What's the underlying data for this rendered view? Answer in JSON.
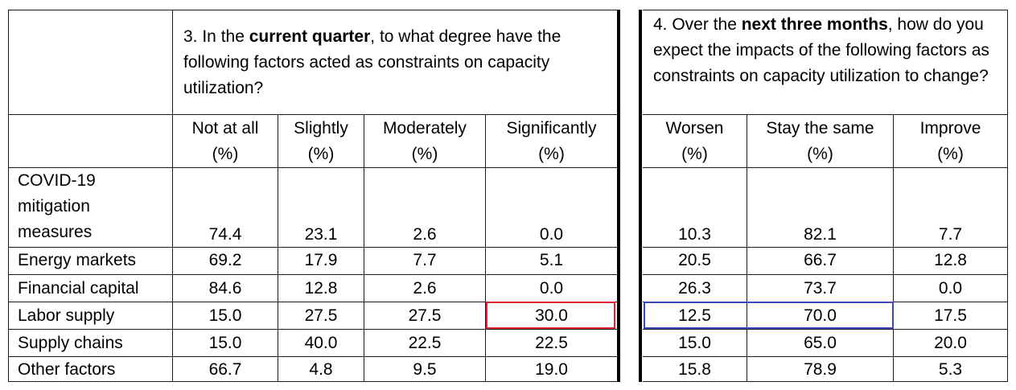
{
  "question3": {
    "pre": "3. In the ",
    "bold": "current quarter",
    "post": ", to what degree have the following factors acted as constraints on capacity utilization?"
  },
  "question4": {
    "pre": "4. Over the ",
    "bold": "next three months",
    "post": ", how do you expect the impacts of the following factors as constraints on capacity utilization to change?"
  },
  "columns": [
    {
      "label": "Not at all",
      "unit": "(%)"
    },
    {
      "label": "Slightly",
      "unit": "(%)"
    },
    {
      "label": "Moderately",
      "unit": "(%)"
    },
    {
      "label": "Significantly",
      "unit": "(%)"
    },
    {
      "label": "Worsen",
      "unit": "(%)"
    },
    {
      "label": "Stay the same",
      "unit": "(%)"
    },
    {
      "label": "Improve",
      "unit": "(%)"
    }
  ],
  "rows": [
    {
      "label_lines": [
        "COVID-19",
        "mitigation",
        "measures"
      ],
      "values": [
        "74.4",
        "23.1",
        "2.6",
        "0.0",
        "10.3",
        "82.1",
        "7.7"
      ]
    },
    {
      "label_lines": [
        "Energy markets"
      ],
      "values": [
        "69.2",
        "17.9",
        "7.7",
        "5.1",
        "20.5",
        "66.7",
        "12.8"
      ]
    },
    {
      "label_lines": [
        "Financial capital"
      ],
      "values": [
        "84.6",
        "12.8",
        "2.6",
        "0.0",
        "26.3",
        "73.7",
        "0.0"
      ]
    },
    {
      "label_lines": [
        "Labor supply"
      ],
      "values": [
        "15.0",
        "27.5",
        "27.5",
        "30.0",
        "12.5",
        "70.0",
        "17.5"
      ]
    },
    {
      "label_lines": [
        "Supply chains"
      ],
      "values": [
        "15.0",
        "40.0",
        "22.5",
        "22.5",
        "15.0",
        "65.0",
        "20.0"
      ]
    },
    {
      "label_lines": [
        "Other factors"
      ],
      "values": [
        "66.7",
        "4.8",
        "9.5",
        "19.0",
        "15.8",
        "78.9",
        "5.3"
      ]
    }
  ],
  "highlights": {
    "red_color": "#d9262c",
    "blue_color": "#3d48c0"
  }
}
